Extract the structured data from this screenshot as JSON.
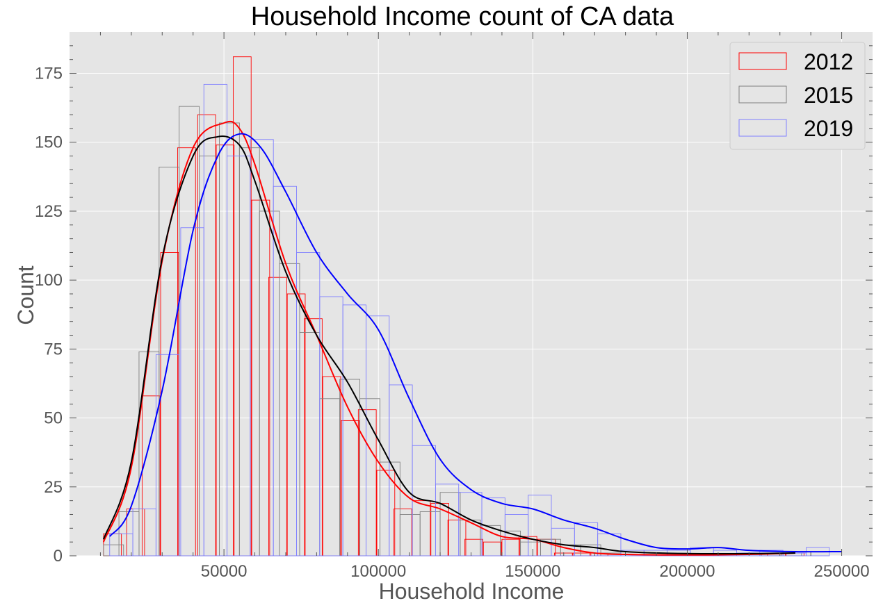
{
  "chart_data": {
    "type": "bar",
    "title": "Household Income count of CA  data",
    "xlabel": "Household Income",
    "ylabel": "Count",
    "xlim": [
      0,
      260000
    ],
    "ylim": [
      0,
      190
    ],
    "xticks": [
      50000,
      100000,
      150000,
      200000,
      250000
    ],
    "yticks": [
      0,
      25,
      50,
      75,
      100,
      125,
      150,
      175
    ],
    "grid": true,
    "legend_position": "top-right",
    "series": [
      {
        "name": "2012",
        "color": "#ff0000",
        "bins": [
          [
            11000,
            8
          ],
          [
            18500,
            17
          ],
          [
            23500,
            58
          ],
          [
            29500,
            110
          ],
          [
            35000,
            148
          ],
          [
            41500,
            160
          ],
          [
            47500,
            149
          ],
          [
            53000,
            181
          ],
          [
            59000,
            129
          ],
          [
            64500,
            101
          ],
          [
            70500,
            95
          ],
          [
            76000,
            86
          ],
          [
            82000,
            65
          ],
          [
            88000,
            49
          ],
          [
            93500,
            53
          ],
          [
            99500,
            31
          ],
          [
            105000,
            17
          ],
          [
            111000,
            20
          ],
          [
            117000,
            19
          ],
          [
            122500,
            13
          ],
          [
            128000,
            6
          ],
          [
            134000,
            5
          ],
          [
            140000,
            6
          ],
          [
            145500,
            7
          ],
          [
            151500,
            6
          ],
          [
            157000,
            1
          ],
          [
            163000,
            1
          ],
          [
            168500,
            1
          ],
          [
            174500,
            0
          ],
          [
            180000,
            0
          ],
          [
            186000,
            0
          ],
          [
            191500,
            0
          ],
          [
            197500,
            0
          ],
          [
            203000,
            0
          ],
          [
            209000,
            0
          ],
          [
            214500,
            0
          ],
          [
            220500,
            0
          ],
          [
            226000,
            1
          ],
          [
            232000,
            1
          ]
        ],
        "bin_width": 5800,
        "kde_x": [
          11000,
          20000,
          30000,
          40000,
          50000,
          55000,
          60000,
          70000,
          80000,
          90000,
          100000,
          110000,
          120000,
          130000,
          140000,
          150000,
          160000,
          170000,
          180000,
          200000,
          220000,
          235000
        ],
        "kde_y": [
          5,
          32,
          107,
          148,
          157,
          155,
          142,
          106,
          80,
          54,
          34,
          21,
          17,
          12,
          7,
          6,
          3,
          1,
          0.5,
          0.3,
          0.5,
          1
        ]
      },
      {
        "name": "2015",
        "color": "#808080",
        "bins": [
          [
            11000,
            4
          ],
          [
            16000,
            16
          ],
          [
            22500,
            74
          ],
          [
            29000,
            141
          ],
          [
            35500,
            163
          ],
          [
            42000,
            145
          ],
          [
            48500,
            157
          ],
          [
            55000,
            148
          ],
          [
            61500,
            125
          ],
          [
            68000,
            106
          ],
          [
            74500,
            81
          ],
          [
            81000,
            57
          ],
          [
            87500,
            64
          ],
          [
            94000,
            57
          ],
          [
            100500,
            34
          ],
          [
            107000,
            15
          ],
          [
            113500,
            16
          ],
          [
            120000,
            23
          ],
          [
            126500,
            13
          ],
          [
            133000,
            11
          ],
          [
            139500,
            9
          ],
          [
            146000,
            5
          ],
          [
            152500,
            6
          ],
          [
            159000,
            4
          ],
          [
            165500,
            4
          ],
          [
            172000,
            1
          ],
          [
            178500,
            0
          ],
          [
            185000,
            0
          ],
          [
            191500,
            0
          ],
          [
            198000,
            0
          ],
          [
            204500,
            0
          ],
          [
            211000,
            0
          ],
          [
            217500,
            0
          ],
          [
            224000,
            1
          ],
          [
            230500,
            1
          ]
        ],
        "bin_width": 6500,
        "kde_x": [
          11000,
          20000,
          30000,
          40000,
          48000,
          55000,
          60000,
          70000,
          80000,
          90000,
          100000,
          110000,
          120000,
          130000,
          140000,
          150000,
          160000,
          170000,
          180000,
          200000,
          220000,
          235000
        ],
        "kde_y": [
          6,
          34,
          108,
          145,
          152,
          149,
          136,
          103,
          80,
          63,
          42,
          23,
          19,
          13,
          9,
          6,
          4,
          3,
          1.5,
          0.8,
          0.8,
          1
        ]
      },
      {
        "name": "2019",
        "color": "#0000ff",
        "bins": [
          [
            13000,
            8
          ],
          [
            20500,
            17
          ],
          [
            28000,
            73
          ],
          [
            36000,
            119
          ],
          [
            43500,
            171
          ],
          [
            51000,
            145
          ],
          [
            58500,
            151
          ],
          [
            66000,
            134
          ],
          [
            73500,
            110
          ],
          [
            81000,
            94
          ],
          [
            88500,
            91
          ],
          [
            96000,
            87
          ],
          [
            103500,
            62
          ],
          [
            111000,
            40
          ],
          [
            118500,
            26
          ],
          [
            126000,
            23
          ],
          [
            133500,
            21
          ],
          [
            141000,
            15
          ],
          [
            148500,
            22
          ],
          [
            156000,
            10
          ],
          [
            163500,
            12
          ],
          [
            171000,
            8
          ],
          [
            178500,
            2
          ],
          [
            186000,
            2
          ],
          [
            193500,
            2
          ],
          [
            201000,
            3
          ],
          [
            208500,
            2
          ],
          [
            216000,
            1
          ],
          [
            223500,
            2
          ],
          [
            231000,
            1
          ],
          [
            238500,
            3
          ]
        ],
        "bin_width": 7500,
        "kde_x": [
          13000,
          20000,
          30000,
          40000,
          48000,
          55000,
          62000,
          70000,
          80000,
          90000,
          100000,
          110000,
          120000,
          130000,
          140000,
          150000,
          160000,
          170000,
          180000,
          190000,
          200000,
          210000,
          220000,
          235000,
          250000
        ],
        "kde_y": [
          7,
          18,
          60,
          118,
          145,
          153,
          148,
          132,
          110,
          95,
          82,
          57,
          35,
          24,
          19,
          17,
          13,
          10,
          6,
          3,
          2.5,
          3,
          2,
          1.5,
          1.5
        ]
      }
    ]
  }
}
